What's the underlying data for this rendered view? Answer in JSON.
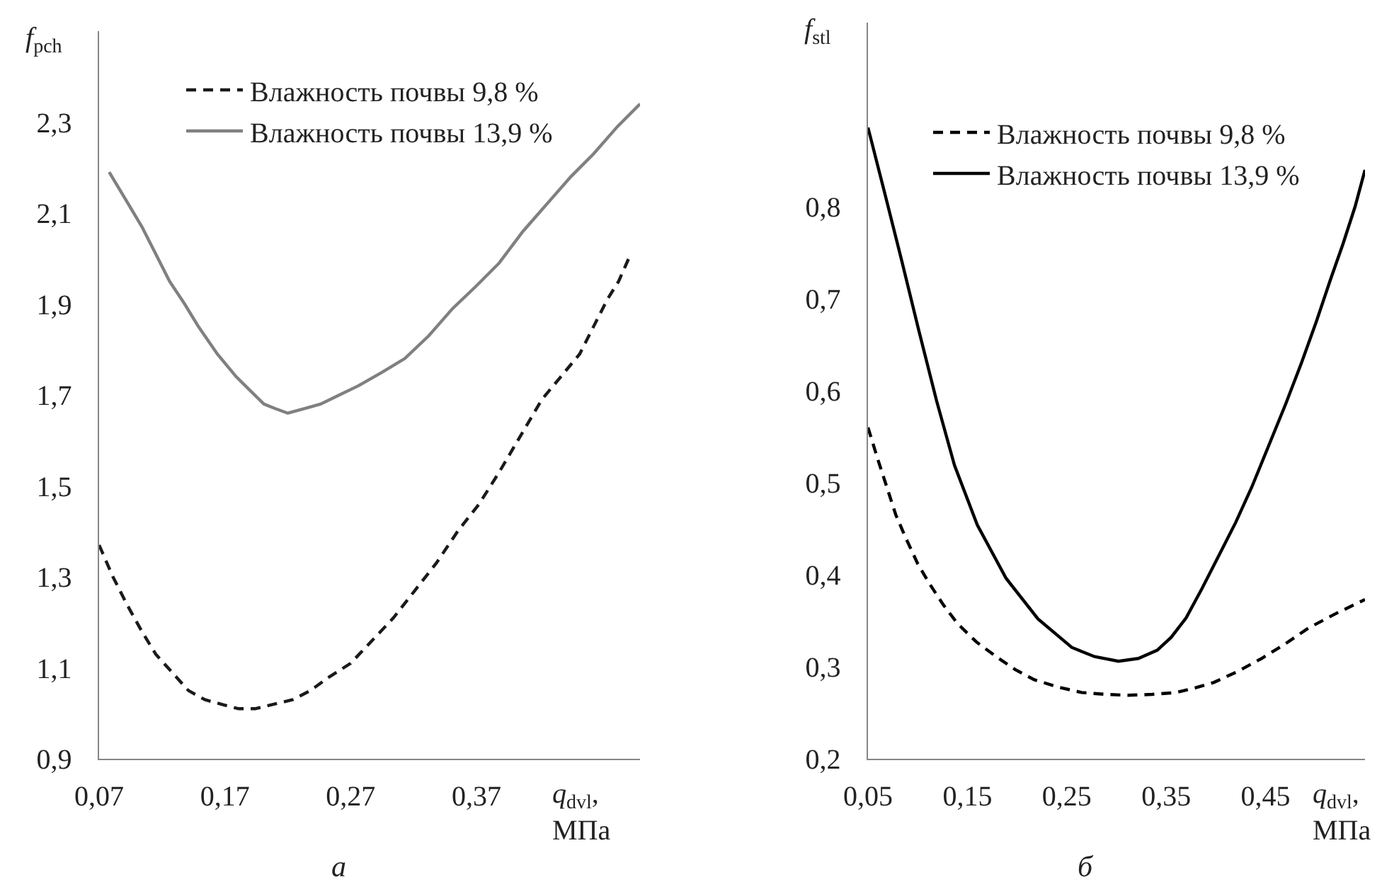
{
  "chart_data": [
    {
      "type": "line",
      "xlabel": "q$_{dvl}$,\nМПа",
      "ylabel": "f$_{pch}$",
      "annotations": [
        "а"
      ],
      "legend": "top",
      "grid": false,
      "xlim": [
        0.07,
        0.5
      ],
      "xticks": [
        {
          "value": 0.07,
          "label": "0,07"
        },
        {
          "value": 0.17,
          "label": "0,17"
        },
        {
          "value": 0.27,
          "label": "0,27"
        },
        {
          "value": 0.37,
          "label": "0,37"
        }
      ],
      "ylim": [
        0.9,
        2.5
      ],
      "yticks": [
        {
          "value": 0.9,
          "label": "0,9"
        },
        {
          "value": 1.1,
          "label": "1,1"
        },
        {
          "value": 1.3,
          "label": "1,3"
        },
        {
          "value": 1.5,
          "label": "1,5"
        },
        {
          "value": 1.7,
          "label": "1,7"
        },
        {
          "value": 1.9,
          "label": "1,9"
        },
        {
          "value": 2.1,
          "label": "2,1"
        },
        {
          "value": 2.3,
          "label": "2,3"
        }
      ],
      "series": [
        {
          "name": "Влажность почвы 9,8 %",
          "color": "#1a1a1a",
          "line_style": "dashed",
          "x": [
            0.07,
            0.081,
            0.092,
            0.104,
            0.115,
            0.128,
            0.141,
            0.154,
            0.167,
            0.181,
            0.194,
            0.209,
            0.224,
            0.238,
            0.253,
            0.27,
            0.287,
            0.304,
            0.321,
            0.338,
            0.355,
            0.372,
            0.388,
            0.405,
            0.422,
            0.437,
            0.452,
            0.463,
            0.474,
            0.483,
            0.491
          ],
          "values": [
            1.37,
            1.3,
            1.24,
            1.18,
            1.13,
            1.09,
            1.05,
            1.03,
            1.02,
            1.01,
            1.01,
            1.02,
            1.03,
            1.05,
            1.08,
            1.11,
            1.16,
            1.21,
            1.27,
            1.33,
            1.4,
            1.46,
            1.53,
            1.61,
            1.69,
            1.74,
            1.79,
            1.85,
            1.91,
            1.95,
            2.0
          ]
        },
        {
          "name": "Влажность почвы 13,9 %",
          "color": "#808080",
          "line_style": "solid",
          "x": [
            0.078,
            0.091,
            0.104,
            0.115,
            0.126,
            0.138,
            0.149,
            0.164,
            0.179,
            0.19,
            0.201,
            0.21,
            0.22,
            0.233,
            0.246,
            0.261,
            0.276,
            0.295,
            0.313,
            0.332,
            0.351,
            0.37,
            0.388,
            0.407,
            0.426,
            0.445,
            0.463,
            0.482,
            0.5
          ],
          "values": [
            2.19,
            2.13,
            2.07,
            2.01,
            1.95,
            1.9,
            1.85,
            1.79,
            1.74,
            1.71,
            1.68,
            1.67,
            1.66,
            1.67,
            1.68,
            1.7,
            1.72,
            1.75,
            1.78,
            1.83,
            1.89,
            1.94,
            1.99,
            2.06,
            2.12,
            2.18,
            2.23,
            2.29,
            2.34
          ]
        }
      ]
    },
    {
      "type": "line",
      "xlabel": "q$_{dvl}$,\nМПа",
      "ylabel": "f$_{stl}$",
      "annotations": [
        "б"
      ],
      "legend": "top",
      "grid": false,
      "xlim": [
        0.05,
        0.55
      ],
      "xticks": [
        {
          "value": 0.05,
          "label": "0,05"
        },
        {
          "value": 0.15,
          "label": "0,15"
        },
        {
          "value": 0.25,
          "label": "0,25"
        },
        {
          "value": 0.35,
          "label": "0,35"
        },
        {
          "value": 0.45,
          "label": "0,45"
        }
      ],
      "ylim": [
        0.2,
        1.0
      ],
      "yticks": [
        {
          "value": 0.2,
          "label": "0,2"
        },
        {
          "value": 0.3,
          "label": "0,3"
        },
        {
          "value": 0.4,
          "label": "0,4"
        },
        {
          "value": 0.5,
          "label": "0,5"
        },
        {
          "value": 0.6,
          "label": "0,6"
        },
        {
          "value": 0.7,
          "label": "0,7"
        },
        {
          "value": 0.8,
          "label": "0,8"
        }
      ],
      "series": [
        {
          "name": "Влажность почвы 9,8 %",
          "color": "#000000",
          "line_style": "dashed",
          "x": [
            0.05,
            0.06,
            0.069,
            0.078,
            0.088,
            0.1,
            0.112,
            0.126,
            0.14,
            0.159,
            0.179,
            0.198,
            0.217,
            0.241,
            0.265,
            0.289,
            0.312,
            0.336,
            0.36,
            0.379,
            0.398,
            0.422,
            0.446,
            0.47,
            0.493,
            0.521,
            0.55
          ],
          "values": [
            0.56,
            0.525,
            0.495,
            0.465,
            0.44,
            0.412,
            0.39,
            0.367,
            0.347,
            0.327,
            0.311,
            0.297,
            0.286,
            0.278,
            0.272,
            0.27,
            0.269,
            0.27,
            0.272,
            0.277,
            0.283,
            0.295,
            0.309,
            0.325,
            0.342,
            0.358,
            0.373
          ]
        },
        {
          "name": "Влажность почвы 13,9 %",
          "color": "#000000",
          "line_style": "solid",
          "x": [
            0.05,
            0.067,
            0.084,
            0.101,
            0.119,
            0.137,
            0.16,
            0.189,
            0.221,
            0.255,
            0.278,
            0.302,
            0.322,
            0.341,
            0.355,
            0.37,
            0.386,
            0.403,
            0.42,
            0.436,
            0.453,
            0.47,
            0.486,
            0.501,
            0.515,
            0.528,
            0.54,
            0.55
          ],
          "values": [
            0.886,
            0.814,
            0.741,
            0.666,
            0.589,
            0.519,
            0.454,
            0.396,
            0.352,
            0.321,
            0.311,
            0.306,
            0.309,
            0.318,
            0.332,
            0.353,
            0.385,
            0.421,
            0.457,
            0.495,
            0.54,
            0.585,
            0.63,
            0.675,
            0.72,
            0.76,
            0.8,
            0.84
          ]
        }
      ]
    }
  ]
}
